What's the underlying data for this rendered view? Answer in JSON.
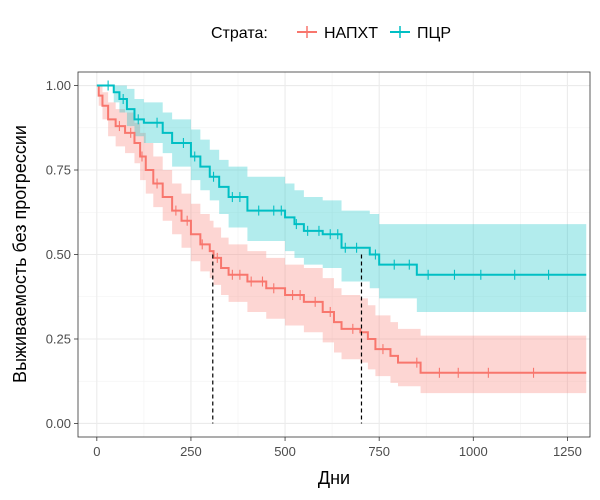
{
  "chart_data": {
    "type": "line",
    "subtype": "kaplan-meier",
    "xlabel": "Дни",
    "ylabel": "Выживаемость без прогрессии",
    "xlim": [
      -50,
      1310
    ],
    "ylim": [
      -0.04,
      1.04
    ],
    "xticks": [
      0,
      250,
      500,
      750,
      1000,
      1250
    ],
    "yticks": [
      0.0,
      0.25,
      0.5,
      0.75,
      1.0
    ],
    "xtick_labels": [
      "0",
      "250",
      "500",
      "750",
      "1000",
      "1250"
    ],
    "ytick_labels": [
      "0.00",
      "0.25",
      "0.50",
      "0.75",
      "1.00"
    ],
    "grid": true,
    "legend": {
      "title": "Страта:",
      "position": "top",
      "entries": [
        "НАПХТ",
        "ПЦР"
      ]
    },
    "median_lines": [
      {
        "series": "НАПХТ",
        "x": 308,
        "y": 0.5
      },
      {
        "series": "ПЦР",
        "x": 703,
        "y": 0.5
      }
    ],
    "series": [
      {
        "name": "НАПХТ",
        "color": "#F8766D",
        "band_color": "#F8766D",
        "x": [
          0,
          5,
          15,
          30,
          50,
          75,
          100,
          115,
          130,
          150,
          175,
          200,
          225,
          250,
          275,
          300,
          310,
          330,
          350,
          400,
          450,
          500,
          550,
          600,
          630,
          650,
          700,
          720,
          740,
          780,
          800,
          860,
          1300
        ],
        "y": [
          1.0,
          0.97,
          0.94,
          0.9,
          0.88,
          0.86,
          0.83,
          0.79,
          0.75,
          0.71,
          0.67,
          0.63,
          0.6,
          0.56,
          0.53,
          0.51,
          0.49,
          0.46,
          0.44,
          0.42,
          0.4,
          0.38,
          0.36,
          0.33,
          0.3,
          0.28,
          0.27,
          0.25,
          0.22,
          0.2,
          0.18,
          0.15,
          0.15
        ],
        "lower": [
          1.0,
          0.94,
          0.9,
          0.85,
          0.82,
          0.8,
          0.77,
          0.72,
          0.68,
          0.64,
          0.6,
          0.56,
          0.52,
          0.48,
          0.45,
          0.43,
          0.41,
          0.38,
          0.36,
          0.33,
          0.31,
          0.29,
          0.27,
          0.24,
          0.21,
          0.19,
          0.18,
          0.16,
          0.14,
          0.12,
          0.11,
          0.09,
          0.09
        ],
        "upper": [
          1.0,
          1.0,
          0.98,
          0.95,
          0.93,
          0.92,
          0.89,
          0.86,
          0.83,
          0.79,
          0.75,
          0.71,
          0.68,
          0.65,
          0.62,
          0.6,
          0.58,
          0.55,
          0.53,
          0.51,
          0.49,
          0.47,
          0.46,
          0.43,
          0.4,
          0.38,
          0.37,
          0.35,
          0.32,
          0.3,
          0.28,
          0.26,
          0.26
        ],
        "censor_x": [
          60,
          90,
          120,
          160,
          210,
          240,
          280,
          320,
          360,
          380,
          410,
          440,
          470,
          520,
          540,
          580,
          620,
          680,
          760,
          850,
          910,
          960,
          1040,
          1160
        ]
      },
      {
        "name": "ПЦР",
        "color": "#00BFC4",
        "band_color": "#00BFC4",
        "x": [
          0,
          45,
          60,
          80,
          100,
          125,
          175,
          200,
          250,
          275,
          300,
          325,
          350,
          400,
          450,
          500,
          525,
          550,
          600,
          650,
          700,
          725,
          750,
          800,
          850,
          1300
        ],
        "y": [
          1.0,
          0.98,
          0.96,
          0.93,
          0.9,
          0.89,
          0.86,
          0.83,
          0.79,
          0.76,
          0.73,
          0.7,
          0.67,
          0.63,
          0.63,
          0.61,
          0.59,
          0.57,
          0.56,
          0.52,
          0.52,
          0.5,
          0.47,
          0.47,
          0.44,
          0.44
        ],
        "lower": [
          1.0,
          0.95,
          0.92,
          0.88,
          0.85,
          0.83,
          0.8,
          0.76,
          0.72,
          0.69,
          0.66,
          0.62,
          0.58,
          0.54,
          0.54,
          0.51,
          0.49,
          0.47,
          0.46,
          0.42,
          0.42,
          0.4,
          0.37,
          0.37,
          0.33,
          0.33
        ],
        "upper": [
          1.0,
          1.0,
          1.0,
          0.99,
          0.96,
          0.95,
          0.92,
          0.9,
          0.87,
          0.84,
          0.81,
          0.78,
          0.76,
          0.73,
          0.73,
          0.71,
          0.69,
          0.67,
          0.66,
          0.63,
          0.63,
          0.62,
          0.59,
          0.59,
          0.59,
          0.59
        ],
        "censor_x": [
          30,
          70,
          110,
          160,
          230,
          260,
          310,
          360,
          380,
          430,
          470,
          490,
          530,
          560,
          590,
          620,
          640,
          660,
          690,
          740,
          790,
          830,
          880,
          950,
          1020,
          1110,
          1200
        ]
      }
    ]
  }
}
